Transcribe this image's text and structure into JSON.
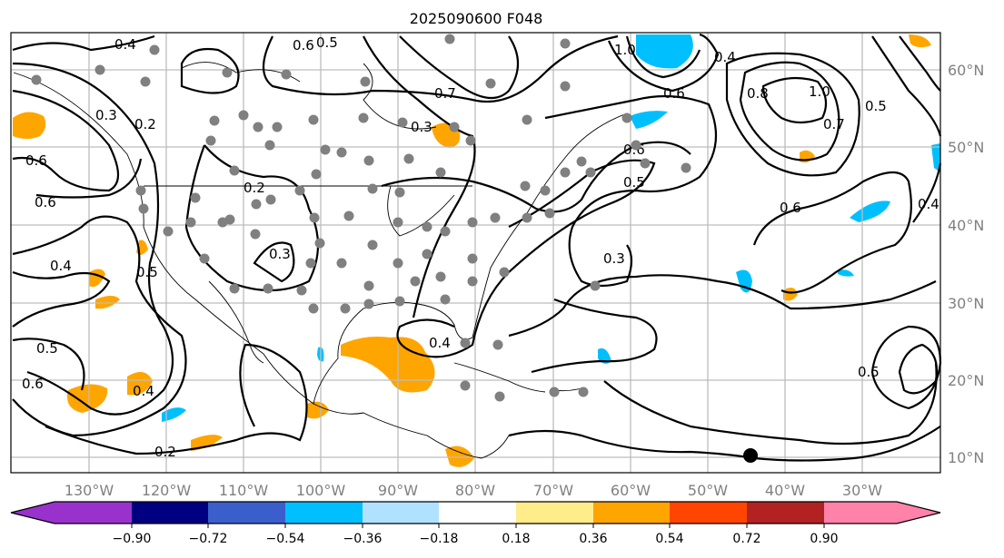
{
  "title": "2025090600 F048",
  "lat_labels": [
    "60°N",
    "50°N",
    "40°N",
    "30°N",
    "20°N",
    "10°N"
  ],
  "lon_labels": [
    "130°W",
    "120°W",
    "110°W",
    "100°W",
    "90°W",
    "80°W",
    "70°W",
    "60°W",
    "50°W",
    "40°W",
    "30°W"
  ],
  "colorbar": {
    "ticks": [
      "−0.90",
      "−0.72",
      "−0.54",
      "−0.36",
      "−0.18",
      "0.18",
      "0.36",
      "0.54",
      "0.72",
      "0.90"
    ],
    "colors": [
      "#9932cc",
      "#000080",
      "#3a5fcd",
      "#00bfff",
      "#b0e2ff",
      "#ffffff",
      "#ffec8b",
      "#ffa500",
      "#ff4500",
      "#b22222",
      "#ff82ab"
    ]
  },
  "contour_labels": [
    "0.4",
    "0.6",
    "0.5",
    "0.3",
    "0.2",
    "0.6",
    "0.6",
    "0.2",
    "0.3",
    "0.4",
    "0.5",
    "0.5",
    "0.6",
    "0.4",
    "0.2",
    "0.4",
    "0.3",
    "0.7",
    "1.0",
    "0.6",
    "0.4",
    "0.8",
    "1.0",
    "0.7",
    "0.5",
    "0.6",
    "0.4",
    "0.6",
    "0.5",
    "0.3",
    "0.5"
  ],
  "colors": {
    "positive": "#ffa500",
    "negative": "#00bfff",
    "station": "#808080",
    "marker": "#000000"
  }
}
